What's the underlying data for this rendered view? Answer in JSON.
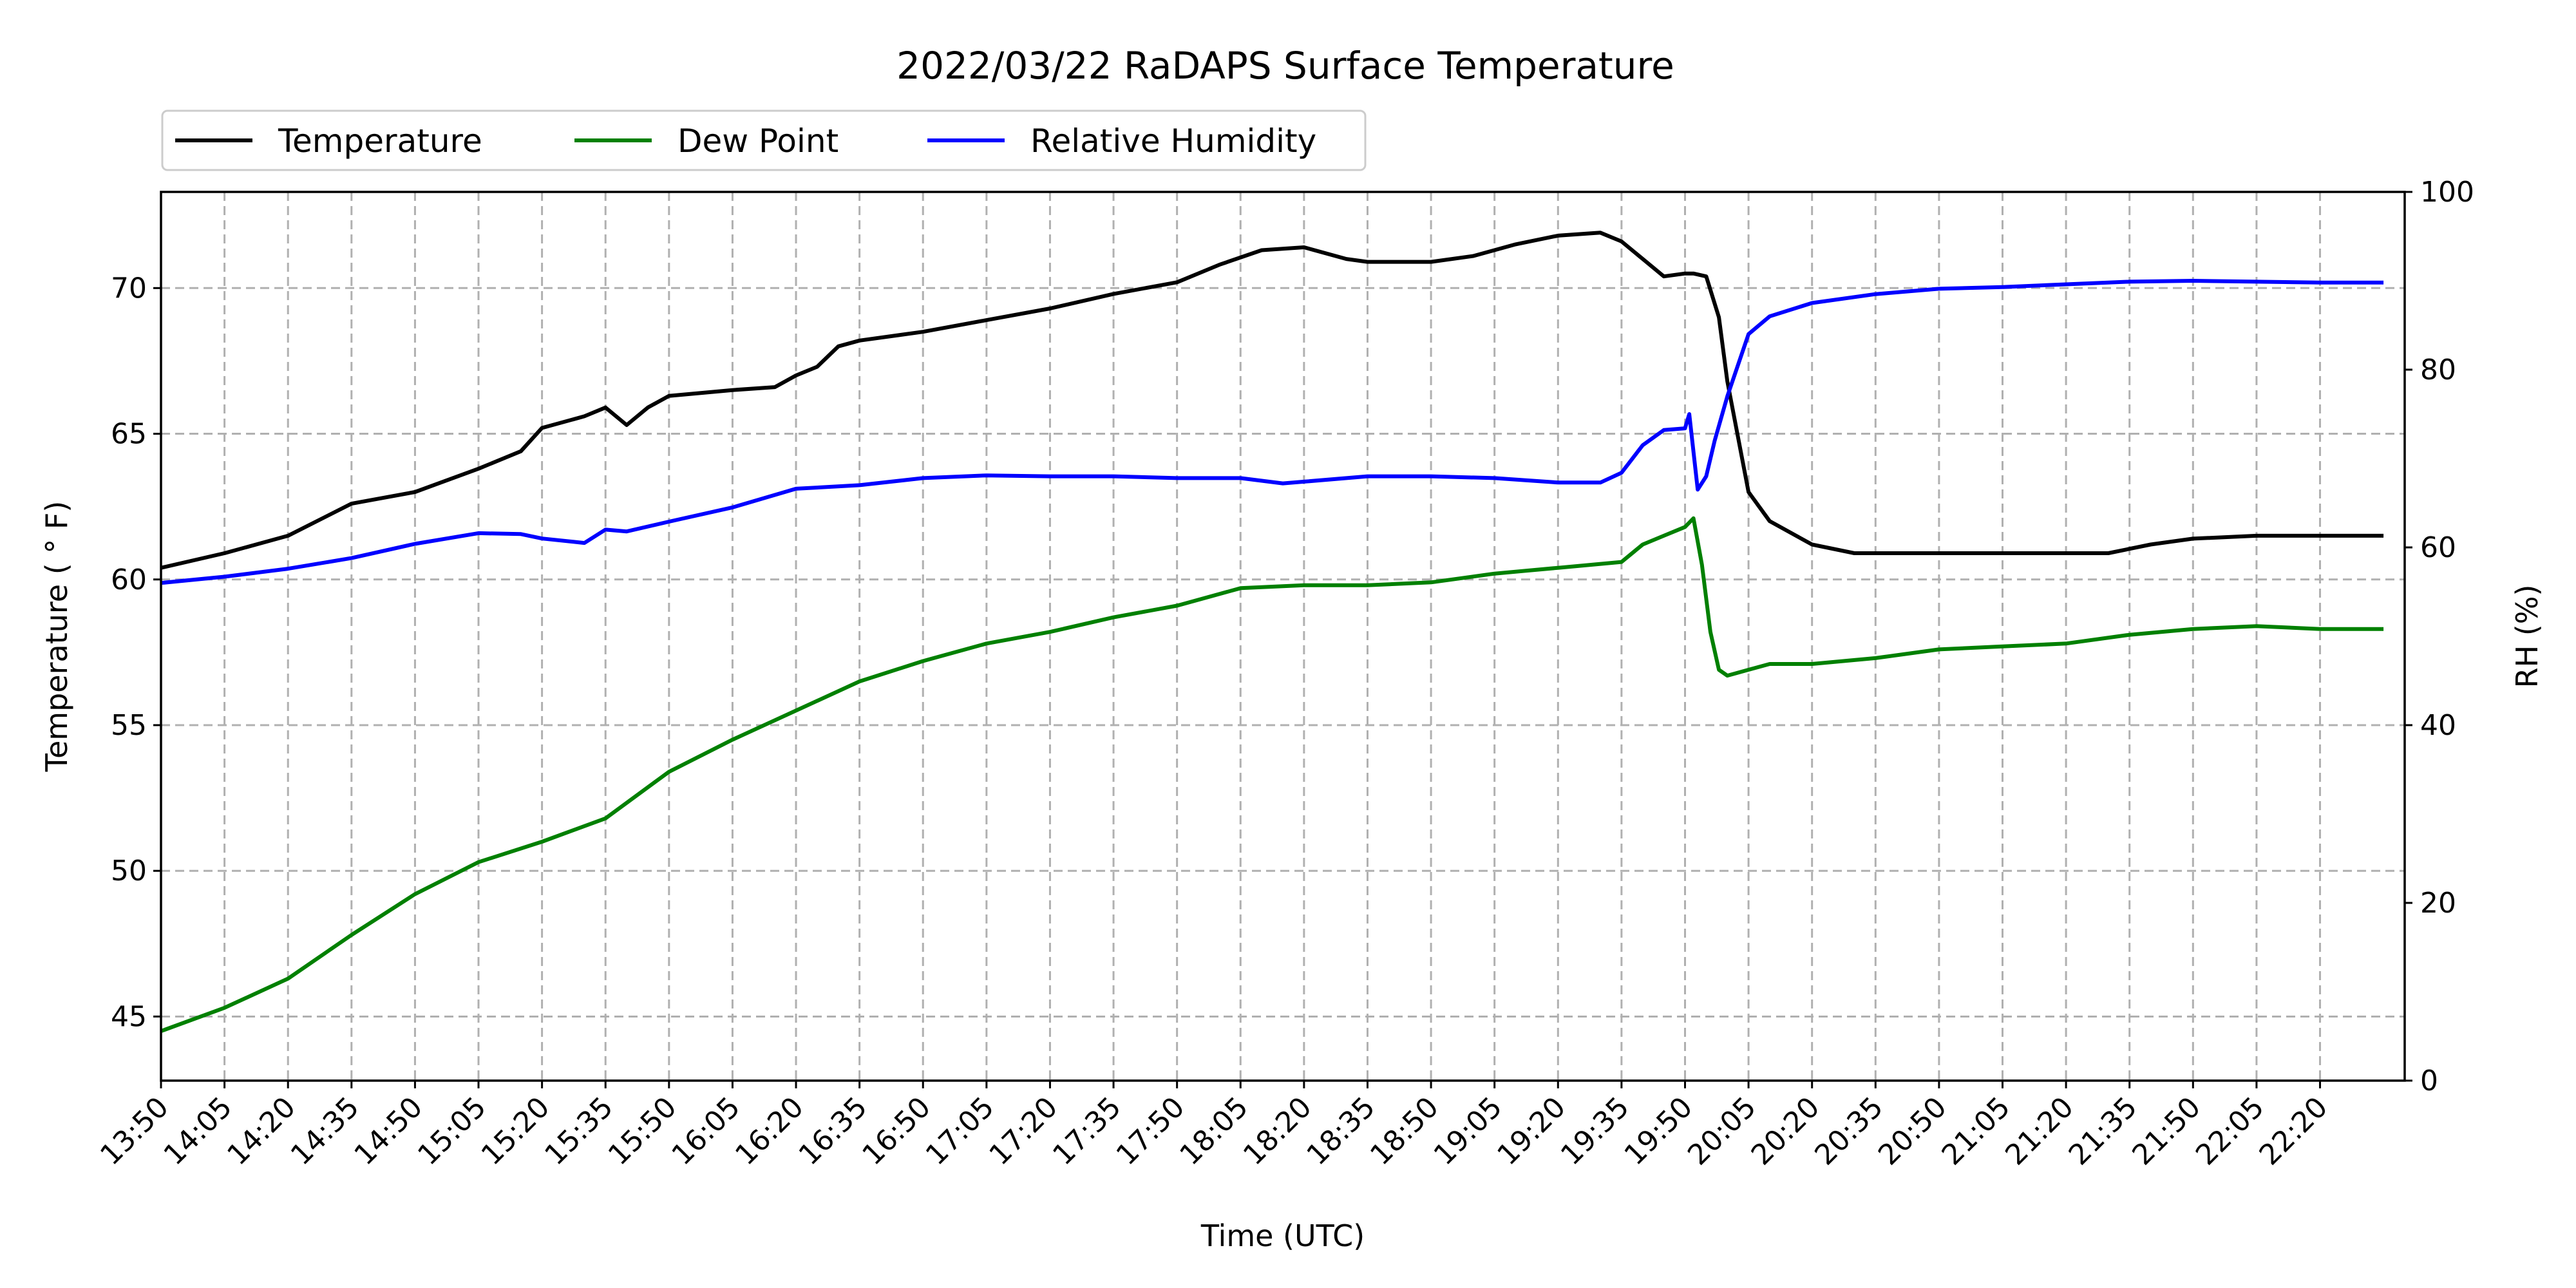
{
  "chart_data": {
    "type": "line",
    "title": "2022/03/22 RaDAPS Surface Temperature",
    "xlabel": "Time (UTC)",
    "ylabel": "Temperature ($^\\circ$F)",
    "ylabel_display": "Temperature ( ° F)",
    "y2label": "RH (%)",
    "ylim": [
      42.8,
      73.3
    ],
    "y2lim": [
      0,
      100
    ],
    "x_ticks": [
      "13:50",
      "14:05",
      "14:20",
      "14:35",
      "14:50",
      "15:05",
      "15:20",
      "15:35",
      "15:50",
      "16:05",
      "16:20",
      "16:35",
      "16:50",
      "17:05",
      "17:20",
      "17:35",
      "17:50",
      "18:05",
      "18:20",
      "18:35",
      "18:50",
      "19:05",
      "19:20",
      "19:35",
      "19:50",
      "20:05",
      "20:20",
      "20:35",
      "20:50",
      "21:05",
      "21:20",
      "21:35",
      "21:50",
      "22:05",
      "22:20"
    ],
    "y_ticks": [
      45,
      50,
      55,
      60,
      65,
      70
    ],
    "y2_ticks": [
      0,
      20,
      40,
      60,
      80,
      100
    ],
    "xlim_minutes": [
      830,
      1360
    ],
    "grid": true,
    "legend_placement": "above-left",
    "series": [
      {
        "name": "Temperature",
        "axis": "left",
        "color": "#000000",
        "x": [
          "13:50",
          "14:05",
          "14:20",
          "14:35",
          "14:50",
          "15:05",
          "15:15",
          "15:20",
          "15:30",
          "15:35",
          "15:40",
          "15:45",
          "15:50",
          "16:05",
          "16:15",
          "16:20",
          "16:25",
          "16:30",
          "16:35",
          "16:50",
          "17:05",
          "17:20",
          "17:35",
          "17:50",
          "18:00",
          "18:10",
          "18:20",
          "18:30",
          "18:35",
          "18:50",
          "19:00",
          "19:10",
          "19:20",
          "19:30",
          "19:35",
          "19:40",
          "19:45",
          "19:50",
          "19:52",
          "19:55",
          "19:58",
          "20:00",
          "20:05",
          "20:10",
          "20:20",
          "20:30",
          "21:00",
          "21:30",
          "21:40",
          "21:50",
          "22:05",
          "22:20",
          "22:35"
        ],
        "y": [
          60.4,
          60.9,
          61.5,
          62.6,
          63.0,
          63.8,
          64.4,
          65.2,
          65.6,
          65.9,
          65.3,
          65.9,
          66.3,
          66.5,
          66.6,
          67.0,
          67.3,
          68.0,
          68.2,
          68.5,
          68.9,
          69.3,
          69.8,
          70.2,
          70.8,
          71.3,
          71.4,
          71.0,
          70.9,
          70.9,
          71.1,
          71.5,
          71.8,
          71.9,
          71.6,
          71.0,
          70.4,
          70.5,
          70.5,
          70.4,
          69.0,
          66.8,
          63.0,
          62.0,
          61.2,
          60.9,
          60.9,
          60.9,
          61.2,
          61.4,
          61.5,
          61.5,
          61.5
        ]
      },
      {
        "name": "Dew Point",
        "axis": "left",
        "color": "#008000",
        "x": [
          "13:50",
          "14:05",
          "14:20",
          "14:35",
          "14:50",
          "15:05",
          "15:20",
          "15:35",
          "15:50",
          "16:05",
          "16:20",
          "16:35",
          "16:50",
          "17:05",
          "17:20",
          "17:35",
          "17:50",
          "18:05",
          "18:20",
          "18:35",
          "18:50",
          "19:05",
          "19:20",
          "19:35",
          "19:40",
          "19:45",
          "19:50",
          "19:52",
          "19:54",
          "19:56",
          "19:58",
          "20:00",
          "20:05",
          "20:10",
          "20:20",
          "20:35",
          "20:50",
          "21:05",
          "21:20",
          "21:35",
          "21:50",
          "22:05",
          "22:20",
          "22:35"
        ],
        "y": [
          44.5,
          45.3,
          46.3,
          47.8,
          49.2,
          50.3,
          51.0,
          51.8,
          53.4,
          54.5,
          55.5,
          56.5,
          57.2,
          57.8,
          58.2,
          58.7,
          59.1,
          59.7,
          59.8,
          59.8,
          59.9,
          60.2,
          60.4,
          60.6,
          61.2,
          61.5,
          61.8,
          62.1,
          60.5,
          58.2,
          56.9,
          56.7,
          56.9,
          57.1,
          57.1,
          57.3,
          57.6,
          57.7,
          57.8,
          58.1,
          58.3,
          58.4,
          58.3,
          58.3
        ]
      },
      {
        "name": "Relative Humidity",
        "axis": "right",
        "color": "#0000ff",
        "x": [
          "13:50",
          "14:05",
          "14:20",
          "14:35",
          "14:50",
          "15:05",
          "15:15",
          "15:20",
          "15:30",
          "15:35",
          "15:40",
          "15:50",
          "16:05",
          "16:20",
          "16:35",
          "16:50",
          "17:05",
          "17:20",
          "17:35",
          "17:50",
          "18:05",
          "18:15",
          "18:20",
          "18:35",
          "18:50",
          "19:05",
          "19:20",
          "19:30",
          "19:35",
          "19:40",
          "19:45",
          "19:50",
          "19:51",
          "19:53",
          "19:55",
          "19:57",
          "20:00",
          "20:05",
          "20:10",
          "20:20",
          "20:35",
          "20:50",
          "21:05",
          "21:20",
          "21:35",
          "21:50",
          "22:05",
          "22:20",
          "22:35"
        ],
        "y": [
          56.0,
          56.7,
          57.6,
          58.8,
          60.4,
          61.6,
          61.5,
          61.0,
          60.5,
          62.0,
          61.8,
          62.9,
          64.5,
          66.6,
          67.0,
          67.8,
          68.1,
          68.0,
          68.0,
          67.8,
          67.8,
          67.2,
          67.4,
          68.0,
          68.0,
          67.8,
          67.3,
          67.3,
          68.4,
          71.5,
          73.2,
          73.4,
          75.0,
          66.5,
          68.0,
          72.0,
          77.0,
          84.0,
          86.0,
          87.5,
          88.5,
          89.1,
          89.3,
          89.6,
          89.9,
          90.0,
          89.9,
          89.8,
          89.8
        ]
      }
    ]
  }
}
